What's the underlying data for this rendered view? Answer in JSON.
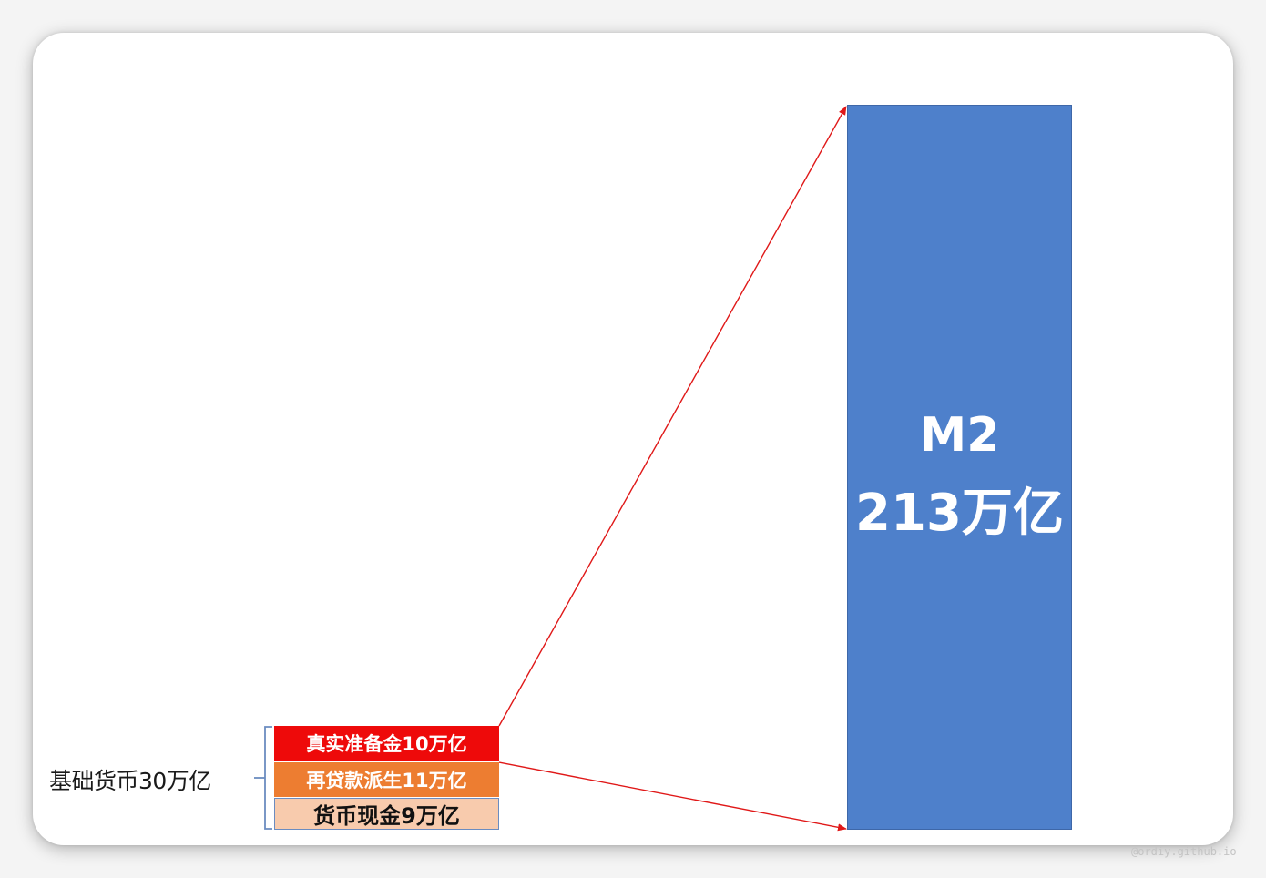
{
  "diagram": {
    "base_money": {
      "label": "基础货币30万亿"
    },
    "components": [
      {
        "label": "真实准备金10万亿",
        "color": "#ee0a0a"
      },
      {
        "label": "再贷款派生11万亿",
        "color": "#ed7d31"
      },
      {
        "label": "货币现金9万亿",
        "color": "#f8cbad"
      }
    ],
    "m2": {
      "name": "M2",
      "value": "213万亿",
      "color": "#4e80cb"
    },
    "arrow_color": "#e01818",
    "brace_color": "#6b8cc0"
  },
  "watermark": "@ordiy.github.io"
}
